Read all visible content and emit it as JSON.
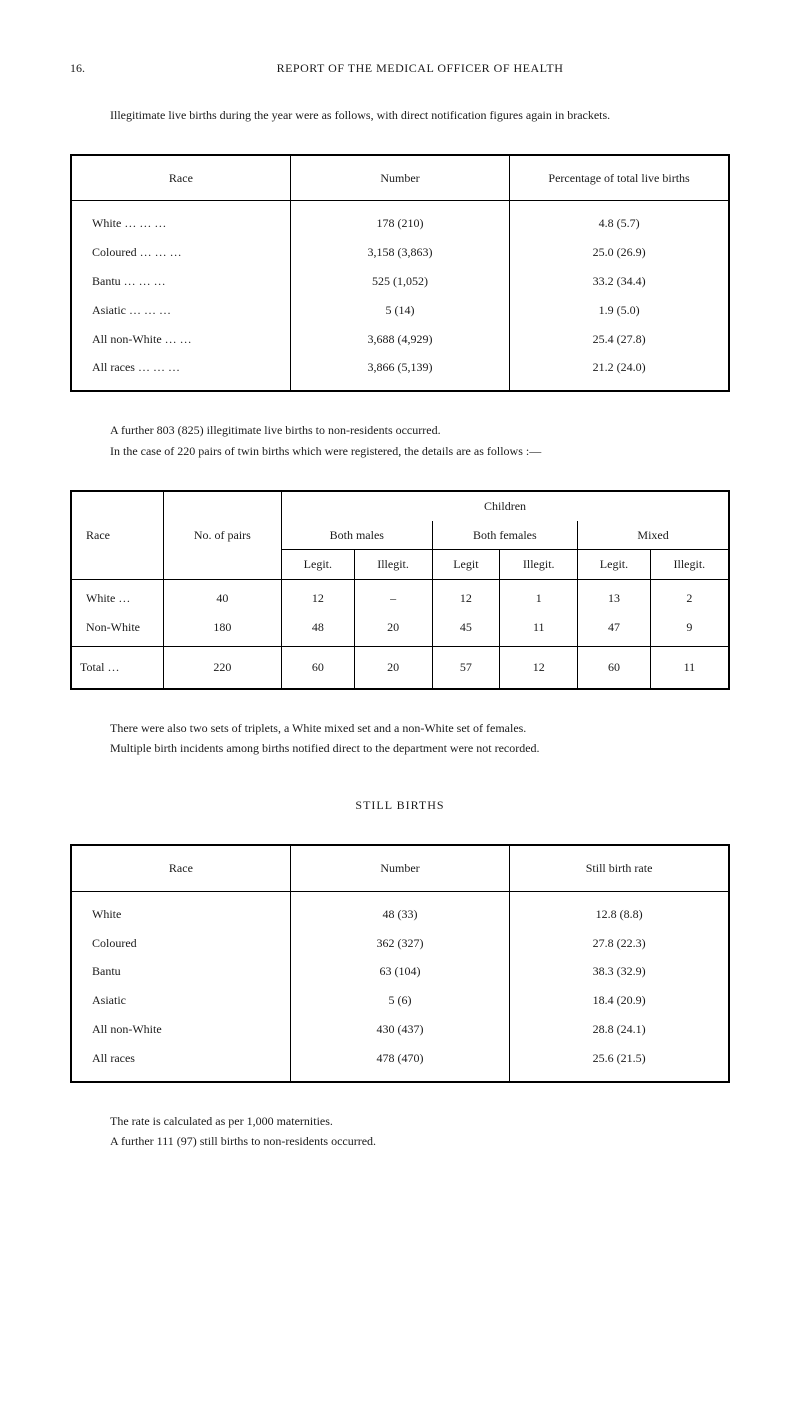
{
  "page_number": "16.",
  "header": "REPORT OF THE MEDICAL OFFICER OF HEALTH",
  "intro_text": "Illegitimate live births during the year were as follows, with direct notification figures again in brackets.",
  "table1": {
    "headers": {
      "race": "Race",
      "number": "Number",
      "pct": "Percentage of total live births"
    },
    "rows": [
      {
        "race": "White      …    …    …",
        "number": "178 (210)",
        "pct": "4.8 (5.7)"
      },
      {
        "race": "Coloured   …    …    …",
        "number": "3,158 (3,863)",
        "pct": "25.0 (26.9)"
      },
      {
        "race": "Bantu      …    …    …",
        "number": "525 (1,052)",
        "pct": "33.2 (34.4)"
      },
      {
        "race": "Asiatic    …    …    …",
        "number": "5 (14)",
        "pct": "1.9 (5.0)"
      },
      {
        "race": "All non-White   …    …",
        "number": "3,688 (4,929)",
        "pct": "25.4 (27.8)"
      },
      {
        "race": "All races  …    …    …",
        "number": "3,866 (5,139)",
        "pct": "21.2 (24.0)"
      }
    ]
  },
  "mid_note": {
    "line1": "A further 803 (825) illegitimate live births to non-residents occurred.",
    "line2": "In the case of 220 pairs of twin births which were registered, the details are as follows :—"
  },
  "table2": {
    "super_header": "Children",
    "headers": {
      "race": "Race",
      "pairs": "No. of pairs",
      "both_males": "Both males",
      "both_females": "Both females",
      "mixed": "Mixed",
      "legit": "Legit.",
      "illegit": "Illegit.",
      "legit2": "Legit"
    },
    "rows": [
      {
        "race": "White …",
        "pairs": "40",
        "bm_l": "12",
        "bm_i": "–",
        "bf_l": "12",
        "bf_i": "1",
        "mx_l": "13",
        "mx_i": "2"
      },
      {
        "race": "Non-White",
        "pairs": "180",
        "bm_l": "48",
        "bm_i": "20",
        "bf_l": "45",
        "bf_i": "11",
        "mx_l": "47",
        "mx_i": "9"
      }
    ],
    "total": {
      "race": "Total …",
      "pairs": "220",
      "bm_l": "60",
      "bm_i": "20",
      "bf_l": "57",
      "bf_i": "12",
      "mx_l": "60",
      "mx_i": "11"
    }
  },
  "triplets_note": {
    "line1": "There were also two sets of triplets, a White mixed set and a non-White set of females.",
    "line2": "Multiple birth incidents among births notified direct to the department were not recorded."
  },
  "still_births_heading": "STILL BIRTHS",
  "table3": {
    "headers": {
      "race": "Race",
      "number": "Number",
      "rate": "Still birth rate"
    },
    "rows": [
      {
        "race": "White",
        "number": "48 (33)",
        "rate": "12.8 (8.8)"
      },
      {
        "race": "Coloured",
        "number": "362 (327)",
        "rate": "27.8 (22.3)"
      },
      {
        "race": "Bantu",
        "number": "63 (104)",
        "rate": "38.3 (32.9)"
      },
      {
        "race": "Asiatic",
        "number": "5 (6)",
        "rate": "18.4 (20.9)"
      },
      {
        "race": "All non-White",
        "number": "430 (437)",
        "rate": "28.8 (24.1)"
      },
      {
        "race": "All races",
        "number": "478 (470)",
        "rate": "25.6 (21.5)"
      }
    ]
  },
  "footer": {
    "line1": "The rate is calculated as per 1,000 maternities.",
    "line2": "A further 111 (97) still births to non-residents occurred."
  }
}
